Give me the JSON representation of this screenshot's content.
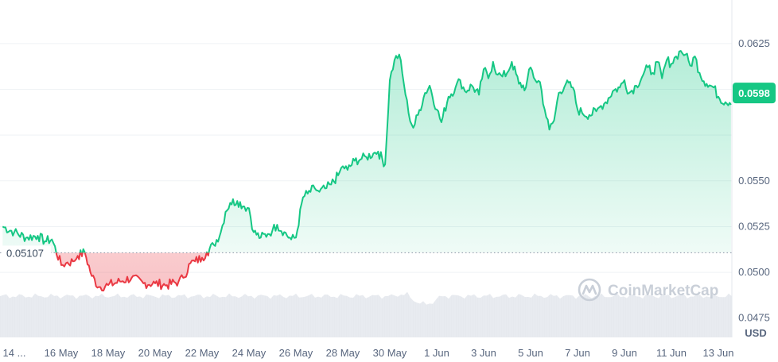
{
  "chart_data": {
    "type": "line",
    "title": "",
    "xlabel": "",
    "ylabel": "",
    "unit": "USD",
    "watermark": "CoinMarketCap",
    "reference": {
      "value": 0.05107,
      "label": "0.05107"
    },
    "current": {
      "value": 0.0598,
      "label": "0.0598"
    },
    "ylim": [
      0.0461,
      0.0641
    ],
    "y_ticks": [
      {
        "value": 0.0625,
        "label": "0.0625"
      },
      {
        "value": 0.055,
        "label": "0.0550"
      },
      {
        "value": 0.0525,
        "label": "0.0525"
      },
      {
        "value": 0.05,
        "label": "0.0500"
      },
      {
        "value": 0.0475,
        "label": "0.0475"
      }
    ],
    "x_ticks": [
      {
        "day": 0,
        "label": "14 ..."
      },
      {
        "day": 2,
        "label": "16 May"
      },
      {
        "day": 4,
        "label": "18 May"
      },
      {
        "day": 6,
        "label": "20 May"
      },
      {
        "day": 8,
        "label": "22 May"
      },
      {
        "day": 10,
        "label": "24 May"
      },
      {
        "day": 12,
        "label": "26 May"
      },
      {
        "day": 14,
        "label": "28 May"
      },
      {
        "day": 16,
        "label": "30 May"
      },
      {
        "day": 18,
        "label": "1 Jun"
      },
      {
        "day": 20,
        "label": "3 Jun"
      },
      {
        "day": 22,
        "label": "5 Jun"
      },
      {
        "day": 24,
        "label": "7 Jun"
      },
      {
        "day": 26,
        "label": "9 Jun"
      },
      {
        "day": 28,
        "label": "11 Jun"
      },
      {
        "day": 30,
        "label": "13 Jun"
      }
    ],
    "series": [
      {
        "x": [
          -0.5,
          0.0,
          0.5,
          1.0,
          1.3,
          1.6,
          2.0,
          2.2,
          2.5,
          2.7,
          3.0,
          3.3,
          3.6,
          4.0,
          4.5,
          5.0,
          5.5,
          6.0,
          6.5,
          7.0,
          7.2,
          7.5,
          7.7,
          8.0,
          8.2,
          8.5,
          8.8,
          9.0,
          9.2,
          9.5,
          9.8,
          10.0,
          10.2,
          10.5,
          10.8,
          11.0,
          11.2,
          11.5,
          11.8,
          12.0,
          12.3,
          12.5,
          12.8,
          13.0,
          13.3,
          13.5,
          13.8,
          14.0,
          14.2,
          14.5,
          14.8,
          15.0,
          15.3,
          15.5,
          15.8,
          16.0,
          16.2,
          16.4,
          16.6,
          16.8,
          17.0,
          17.2,
          17.5,
          17.7,
          18.0,
          18.2,
          18.5,
          18.8,
          19.0,
          19.2,
          19.5,
          19.8,
          20.0,
          20.2,
          20.4,
          20.6,
          20.8,
          21.0,
          21.2,
          21.5,
          21.8,
          22.0,
          22.2,
          22.4,
          22.6,
          22.8,
          23.0,
          23.2,
          23.5,
          23.8,
          24.0,
          24.2,
          24.5,
          24.8,
          25.0,
          25.2,
          25.5,
          25.8,
          26.0,
          26.2,
          26.5,
          26.8,
          27.0,
          27.2,
          27.4,
          27.6,
          27.8,
          28.0,
          28.2,
          28.4,
          28.6,
          28.8,
          29.0,
          29.2,
          29.5,
          29.8,
          30.0,
          30.3,
          30.6,
          30.9
        ],
        "values": [
          0.0525,
          0.0522,
          0.0519,
          0.052,
          0.0517,
          0.0518,
          0.0504,
          0.0505,
          0.0506,
          0.0509,
          0.0511,
          0.0498,
          0.0492,
          0.0493,
          0.0495,
          0.0497,
          0.0494,
          0.0494,
          0.0493,
          0.0495,
          0.0497,
          0.0505,
          0.0506,
          0.0508,
          0.0511,
          0.0515,
          0.0522,
          0.0533,
          0.0538,
          0.0539,
          0.0536,
          0.0535,
          0.0522,
          0.0519,
          0.0521,
          0.0523,
          0.0526,
          0.0522,
          0.0518,
          0.0519,
          0.0541,
          0.0543,
          0.0546,
          0.0544,
          0.0546,
          0.0548,
          0.0553,
          0.0558,
          0.0556,
          0.0561,
          0.0562,
          0.0563,
          0.0565,
          0.0566,
          0.0559,
          0.0605,
          0.0616,
          0.0619,
          0.0603,
          0.0587,
          0.0579,
          0.0586,
          0.0598,
          0.0602,
          0.0589,
          0.0582,
          0.0596,
          0.0601,
          0.0605,
          0.0599,
          0.0602,
          0.0597,
          0.0611,
          0.0606,
          0.0615,
          0.0608,
          0.0607,
          0.0609,
          0.0615,
          0.0603,
          0.0601,
          0.0612,
          0.0605,
          0.0604,
          0.0589,
          0.0578,
          0.0583,
          0.0598,
          0.0603,
          0.0601,
          0.0589,
          0.0587,
          0.0586,
          0.0588,
          0.0591,
          0.0593,
          0.0599,
          0.0601,
          0.0605,
          0.0598,
          0.0602,
          0.0608,
          0.0612,
          0.0609,
          0.0615,
          0.0606,
          0.0616,
          0.0614,
          0.0618,
          0.0621,
          0.0619,
          0.0613,
          0.0618,
          0.0609,
          0.0603,
          0.0601,
          0.0596,
          0.0593,
          0.0594,
          0.0598
        ]
      }
    ],
    "volume_bars": true,
    "grid": true,
    "colors": {
      "up_line": "#16c784",
      "down_line": "#ea3943",
      "up_fill": "#16c784",
      "down_fill": "#ea3943",
      "grid": "#eff2f5",
      "axis_text": "#58667e",
      "volume": "#e6e9ee",
      "watermark": "#c9cfd8"
    }
  }
}
